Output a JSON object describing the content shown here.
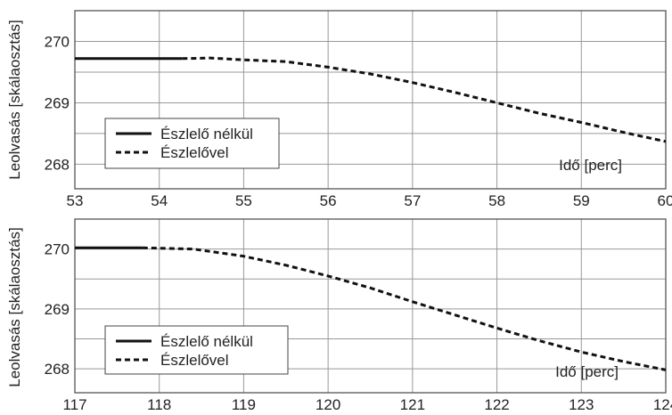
{
  "chart_data": [
    {
      "type": "line",
      "ylabel": "Leolvasás [skálaosztás]",
      "xlabel": "Idő [perc]",
      "xlim": [
        53,
        60
      ],
      "ylim": [
        267.6,
        270.5
      ],
      "x_ticks": [
        53,
        54,
        55,
        56,
        57,
        58,
        59,
        60
      ],
      "y_ticks": [
        268,
        269,
        270
      ],
      "y_minor_grid": [
        268.5,
        269.5
      ],
      "grid": true,
      "legend_placement": "lower-left",
      "series": [
        {
          "name": "Észlelő nélkül",
          "style": "solid",
          "x": [
            53,
            54.27
          ],
          "y": [
            269.72,
            269.72
          ]
        },
        {
          "name": "Észlelővel",
          "style": "dashed",
          "x": [
            54.27,
            54.6,
            55,
            55.5,
            56,
            56.5,
            57,
            57.5,
            58,
            58.5,
            59,
            59.5,
            60
          ],
          "y": [
            269.72,
            269.73,
            269.7,
            269.67,
            269.58,
            269.47,
            269.33,
            269.17,
            269.0,
            268.83,
            268.68,
            268.52,
            268.37
          ]
        }
      ]
    },
    {
      "type": "line",
      "ylabel": "Leolvasás [skálaosztás]",
      "xlabel": "Idő [perc]",
      "xlim": [
        117,
        124
      ],
      "ylim": [
        267.6,
        270.5
      ],
      "x_ticks": [
        117,
        118,
        119,
        120,
        121,
        122,
        123,
        124
      ],
      "y_ticks": [
        268,
        269,
        270
      ],
      "y_minor_grid": [
        268.5,
        269.5
      ],
      "grid": true,
      "legend_placement": "lower-left",
      "series": [
        {
          "name": "Észlelő nélkül",
          "style": "solid",
          "x": [
            117,
            117.8
          ],
          "y": [
            270.02,
            270.02
          ]
        },
        {
          "name": "Észlelővel",
          "style": "dashed",
          "x": [
            117.8,
            118.4,
            119,
            119.5,
            120,
            120.5,
            121,
            121.5,
            122,
            122.5,
            123,
            123.5,
            124
          ],
          "y": [
            270.02,
            270.0,
            269.88,
            269.73,
            269.55,
            269.35,
            269.12,
            268.9,
            268.68,
            268.47,
            268.28,
            268.12,
            267.98
          ]
        }
      ]
    }
  ]
}
